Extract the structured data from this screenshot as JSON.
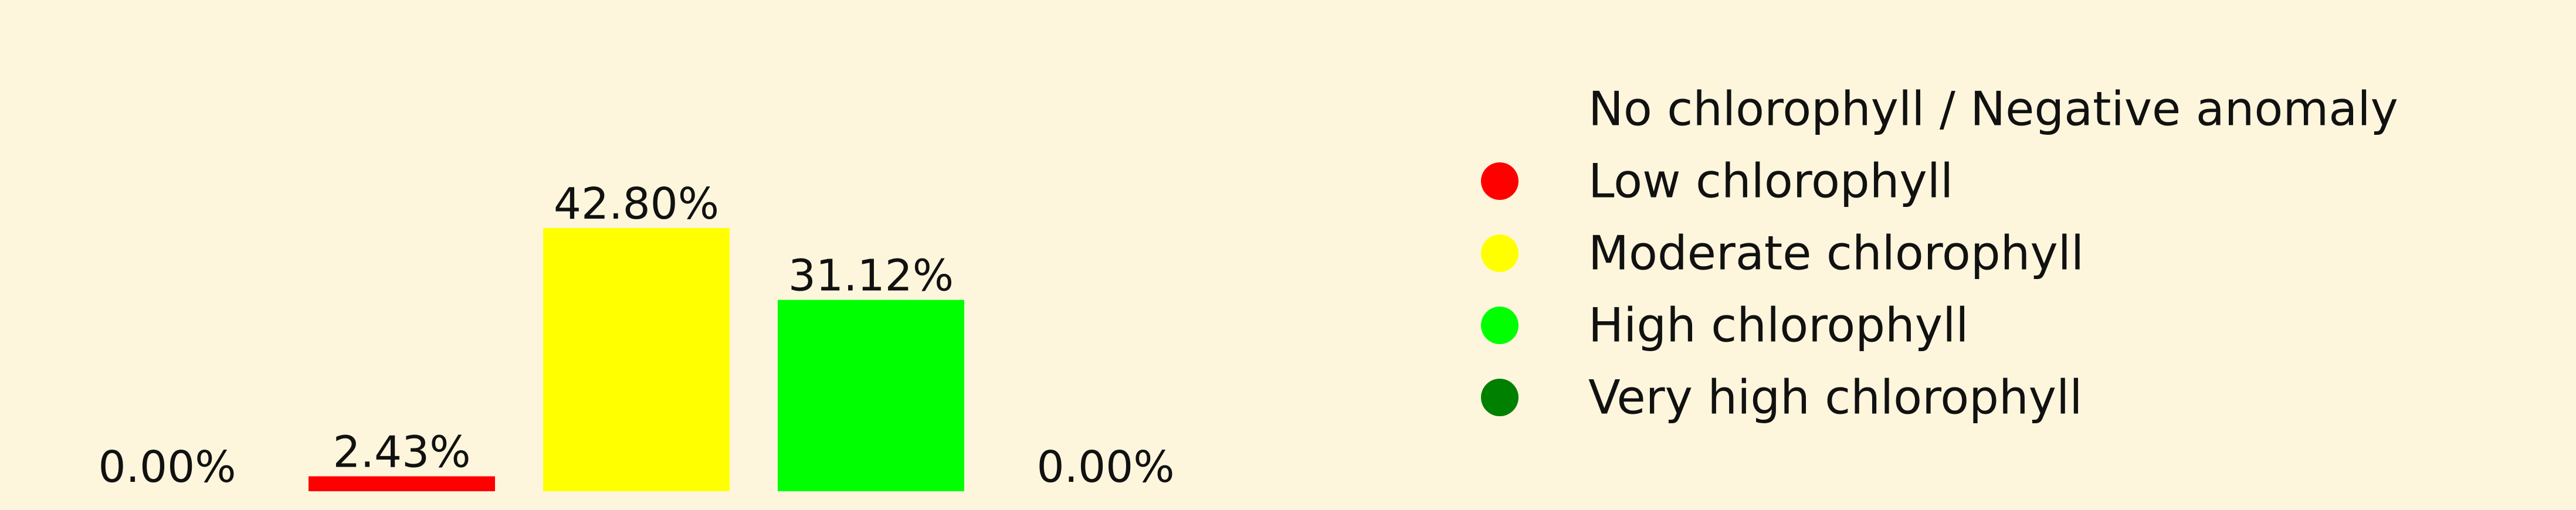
{
  "chart_data": {
    "type": "bar",
    "categories": [
      "No chlorophyll / Negative anomaly",
      "Low chlorophyll",
      "Moderate chlorophyll",
      "High chlorophyll",
      "Very high chlorophyll"
    ],
    "values": [
      0.0,
      2.43,
      42.8,
      31.12,
      0.0
    ],
    "value_labels": [
      "0.00%",
      "2.43%",
      "42.80%",
      "31.12%",
      "0.00%"
    ],
    "colors": [
      "#fdf6dc",
      "#ff0000",
      "#ffff00",
      "#00ff00",
      "#008000"
    ],
    "title": "",
    "xlabel": "",
    "ylabel": "",
    "ylim": [
      0,
      45
    ],
    "grid": false,
    "axes_visible": false,
    "legend": {
      "placement": "right",
      "entries": [
        {
          "label": "No chlorophyll / Negative anomaly",
          "color": "#fdf6dc"
        },
        {
          "label": "Low chlorophyll",
          "color": "#ff0000"
        },
        {
          "label": "Moderate chlorophyll",
          "color": "#ffff00"
        },
        {
          "label": "High chlorophyll",
          "color": "#00ff00"
        },
        {
          "label": "Very high chlorophyll",
          "color": "#008000"
        }
      ]
    }
  }
}
